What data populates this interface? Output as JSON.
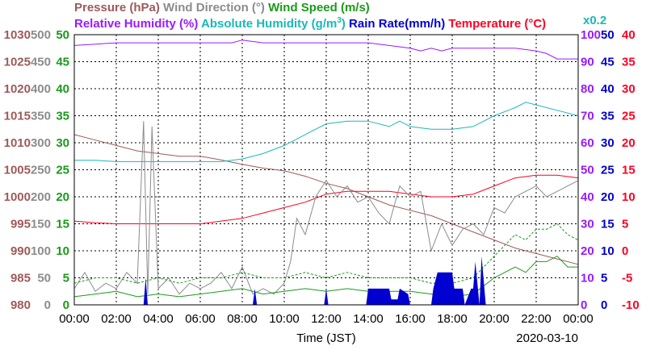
{
  "chart_data": {
    "type": "line",
    "date": "2020-03-10",
    "xlabel": "Time (JST)",
    "x_ticks": [
      "00:00",
      "02:00",
      "04:00",
      "06:00",
      "08:00",
      "10:00",
      "12:00",
      "14:00",
      "16:00",
      "18:00",
      "20:00",
      "22:00",
      "00:00"
    ],
    "legend": {
      "row1": [
        {
          "text": "Pressure (hPa)",
          "color": "#9e5a5a"
        },
        {
          "text": "Wind Direction (°)",
          "color": "#8c8c8c"
        },
        {
          "text": "Wind Speed (m/s)",
          "color": "#1a9a1a"
        }
      ],
      "row2": [
        {
          "text": "Relative Humidity (%)",
          "color": "#9a1aff"
        },
        {
          "text": "Absolute Humidity (g/m",
          "sup": "3",
          "tail": ")",
          "color": "#1ab8b8"
        },
        {
          "text": "Rain Rate(mm/h)",
          "color": "#0000d0"
        },
        {
          "text": "Temperature (°C)",
          "color": "#ff0022"
        }
      ],
      "ah_scale": "x0.2"
    },
    "axes": {
      "pressure": {
        "ticks": [
          "1030",
          "1025",
          "1020",
          "1015",
          "1010",
          "1005",
          "1000",
          "995",
          "990",
          "985",
          "980"
        ],
        "color": "#9e5a5a",
        "ylim": [
          980,
          1030
        ]
      },
      "wind_dir": {
        "ticks": [
          "500",
          "450",
          "400",
          "350",
          "300",
          "250",
          "200",
          "150",
          "100",
          "50",
          "0"
        ],
        "color": "#8c8c8c",
        "ylim": [
          0,
          500
        ]
      },
      "wind_speed": {
        "ticks": [
          "50",
          "45",
          "40",
          "35",
          "30",
          "25",
          "20",
          "15",
          "10",
          "5",
          "0"
        ],
        "color": "#1a9a1a",
        "ylim": [
          0,
          50
        ]
      },
      "humidity": {
        "ticks": [
          "100",
          "90",
          "80",
          "70",
          "60",
          "50",
          "40",
          "30",
          "20",
          "10",
          "0"
        ],
        "color": "#9a1aff",
        "ylim": [
          0,
          100
        ]
      },
      "rain": {
        "ticks": [
          "50",
          "45",
          "40",
          "35",
          "30",
          "25",
          "20",
          "15",
          "10",
          "5",
          "0"
        ],
        "color": "#0000d0",
        "ylim": [
          0,
          50
        ]
      },
      "temp": {
        "ticks": [
          "40",
          "35",
          "30",
          "25",
          "20",
          "15",
          "10",
          "5",
          "0",
          "-5",
          "-10"
        ],
        "color": "#ff0022",
        "ylim": [
          -10,
          40
        ]
      }
    },
    "series": [
      {
        "name": "Pressure (hPa)",
        "axis": "pressure",
        "color": "#9e5a5a",
        "x": [
          0,
          1,
          2,
          3,
          4,
          5,
          6,
          7,
          8,
          9,
          10,
          11,
          12,
          13,
          14,
          15,
          16,
          17,
          18,
          19,
          20,
          21,
          22,
          23,
          24
        ],
        "y": [
          1011.5,
          1010.5,
          1009.5,
          1008.5,
          1008,
          1007.5,
          1007.5,
          1006.8,
          1006,
          1005.3,
          1004.8,
          1003.8,
          1002.5,
          1001.5,
          1000,
          998.5,
          997.5,
          996.5,
          995,
          993.5,
          992,
          990.5,
          989.5,
          988.5,
          987.5
        ]
      },
      {
        "name": "Relative Humidity (%)",
        "axis": "humidity",
        "color": "#9a1aff",
        "x": [
          0,
          2,
          4,
          6,
          7.5,
          8,
          9,
          10,
          11,
          12,
          13,
          14,
          15,
          16,
          16.5,
          17,
          17.5,
          18,
          19,
          20,
          21,
          22,
          22.5,
          23,
          24
        ],
        "y": [
          96,
          97,
          97,
          97,
          97,
          98,
          97,
          97,
          97,
          97,
          97,
          97,
          96,
          95,
          94,
          95,
          94,
          95,
          95,
          95,
          95,
          94,
          93,
          91,
          91
        ]
      },
      {
        "name": "Absolute Humidity (g/m3)",
        "axis": "humidity",
        "color": "#1ab8b8",
        "x": [
          0,
          1,
          2,
          3,
          4,
          5,
          6,
          7,
          8,
          9,
          10,
          11,
          12,
          13,
          14,
          15,
          15.5,
          16,
          17,
          18,
          19,
          20,
          21,
          21.5,
          22,
          23,
          24
        ],
        "y": [
          53.5,
          53.5,
          53,
          53,
          53,
          53,
          53,
          53,
          54,
          56,
          59,
          63,
          67,
          68,
          68,
          66,
          68,
          66,
          65,
          65,
          66,
          70,
          73,
          75,
          74,
          72,
          70
        ]
      },
      {
        "name": "Temperature (°C)",
        "axis": "temp",
        "color": "#ff0022",
        "x": [
          0,
          1,
          2,
          3,
          4,
          5,
          6,
          7,
          8,
          9,
          10,
          11,
          12,
          13,
          14,
          15,
          16,
          17,
          18,
          19,
          20,
          21,
          22,
          23,
          24
        ],
        "y": [
          5.5,
          5.2,
          5.0,
          5.0,
          5.0,
          5.0,
          5.0,
          5.5,
          6.0,
          7.0,
          8.0,
          9.0,
          10.5,
          11.0,
          11.0,
          11.0,
          10.5,
          10.0,
          10.0,
          10.5,
          12.0,
          13.5,
          14.0,
          14.0,
          13.5
        ]
      },
      {
        "name": "Wind Direction (°)",
        "axis": "wind_dir",
        "color": "#8c8c8c",
        "x": [
          0,
          0.5,
          1,
          1.5,
          2,
          2.5,
          3,
          3.3,
          3.5,
          3.7,
          4,
          4.5,
          5,
          5.5,
          6,
          6.5,
          7,
          7.5,
          8,
          8.5,
          9,
          9.5,
          10,
          10.3,
          10.6,
          11,
          11.5,
          12,
          12.5,
          13,
          13.5,
          14,
          14.5,
          15,
          15.5,
          16,
          16.5,
          17,
          17.5,
          18,
          18.5,
          19,
          19.5,
          20,
          20.5,
          21,
          21.5,
          22,
          22.5,
          23,
          23.5,
          24
        ],
        "y": [
          30,
          60,
          25,
          40,
          30,
          60,
          40,
          340,
          20,
          330,
          30,
          50,
          20,
          40,
          30,
          40,
          60,
          30,
          70,
          20,
          30,
          20,
          40,
          80,
          160,
          130,
          200,
          230,
          200,
          220,
          190,
          200,
          170,
          150,
          220,
          200,
          210,
          100,
          150,
          110,
          140,
          150,
          130,
          180,
          170,
          200,
          210,
          220,
          200,
          210,
          220,
          230
        ]
      },
      {
        "name": "Wind Speed (m/s)",
        "axis": "wind_speed",
        "color": "#1a9a1a",
        "x": [
          0,
          1,
          2,
          3,
          4,
          5,
          6,
          7,
          8,
          9,
          10,
          11,
          12,
          13,
          14,
          15,
          16,
          17,
          18,
          19,
          20,
          20.5,
          21,
          21.5,
          22,
          22.5,
          23,
          23.5,
          24
        ],
        "y": [
          1.5,
          2,
          2.5,
          1.5,
          2,
          1.5,
          2,
          2.5,
          3,
          2,
          2.5,
          3,
          2.5,
          3,
          2.5,
          2.5,
          2.5,
          2,
          1.5,
          2,
          5,
          6,
          7,
          6,
          8,
          8,
          9,
          7,
          7
        ]
      },
      {
        "name": "Wind Speed gust",
        "axis": "wind_speed",
        "color": "#1a9a1a",
        "dashed": true,
        "x": [
          0,
          1,
          2,
          3,
          4,
          5,
          6,
          7,
          8,
          9,
          10,
          11,
          12,
          13,
          14,
          15,
          16,
          17,
          18,
          19,
          20,
          20.5,
          21,
          21.5,
          22,
          22.5,
          23,
          23.5,
          24
        ],
        "y": [
          4,
          5,
          5,
          4,
          5,
          4,
          5,
          5,
          6,
          5,
          5,
          6,
          5,
          6,
          5,
          5,
          5,
          4,
          4,
          5,
          9,
          11,
          13,
          12,
          14,
          14,
          15,
          13,
          12
        ]
      },
      {
        "name": "Rain Rate(mm/h)",
        "axis": "rain",
        "color": "#0000d0",
        "fill": true,
        "x": [
          0,
          3.3,
          3.4,
          3.5,
          3.6,
          3.7,
          8.5,
          8.6,
          8.7,
          9.0,
          11.9,
          12.0,
          12.1,
          13.9,
          14.0,
          14.1,
          15.0,
          15.1,
          15.4,
          15.5,
          15.9,
          16.0,
          16.1,
          17.0,
          17.1,
          17.3,
          17.4,
          17.5,
          18.0,
          18.1,
          18.5,
          18.6,
          18.9,
          19.0,
          19.1,
          19.3,
          19.4,
          19.6,
          19.7,
          20.0,
          24
        ],
        "y": [
          0,
          0,
          5,
          0,
          0,
          0,
          0,
          3,
          0,
          0,
          0,
          3,
          0,
          0,
          3,
          3,
          3,
          1,
          1,
          3,
          2,
          0,
          0,
          0,
          3,
          6,
          6,
          6,
          6,
          3,
          3,
          0,
          3,
          3,
          8,
          0,
          9,
          0,
          0,
          0,
          0
        ]
      }
    ]
  }
}
